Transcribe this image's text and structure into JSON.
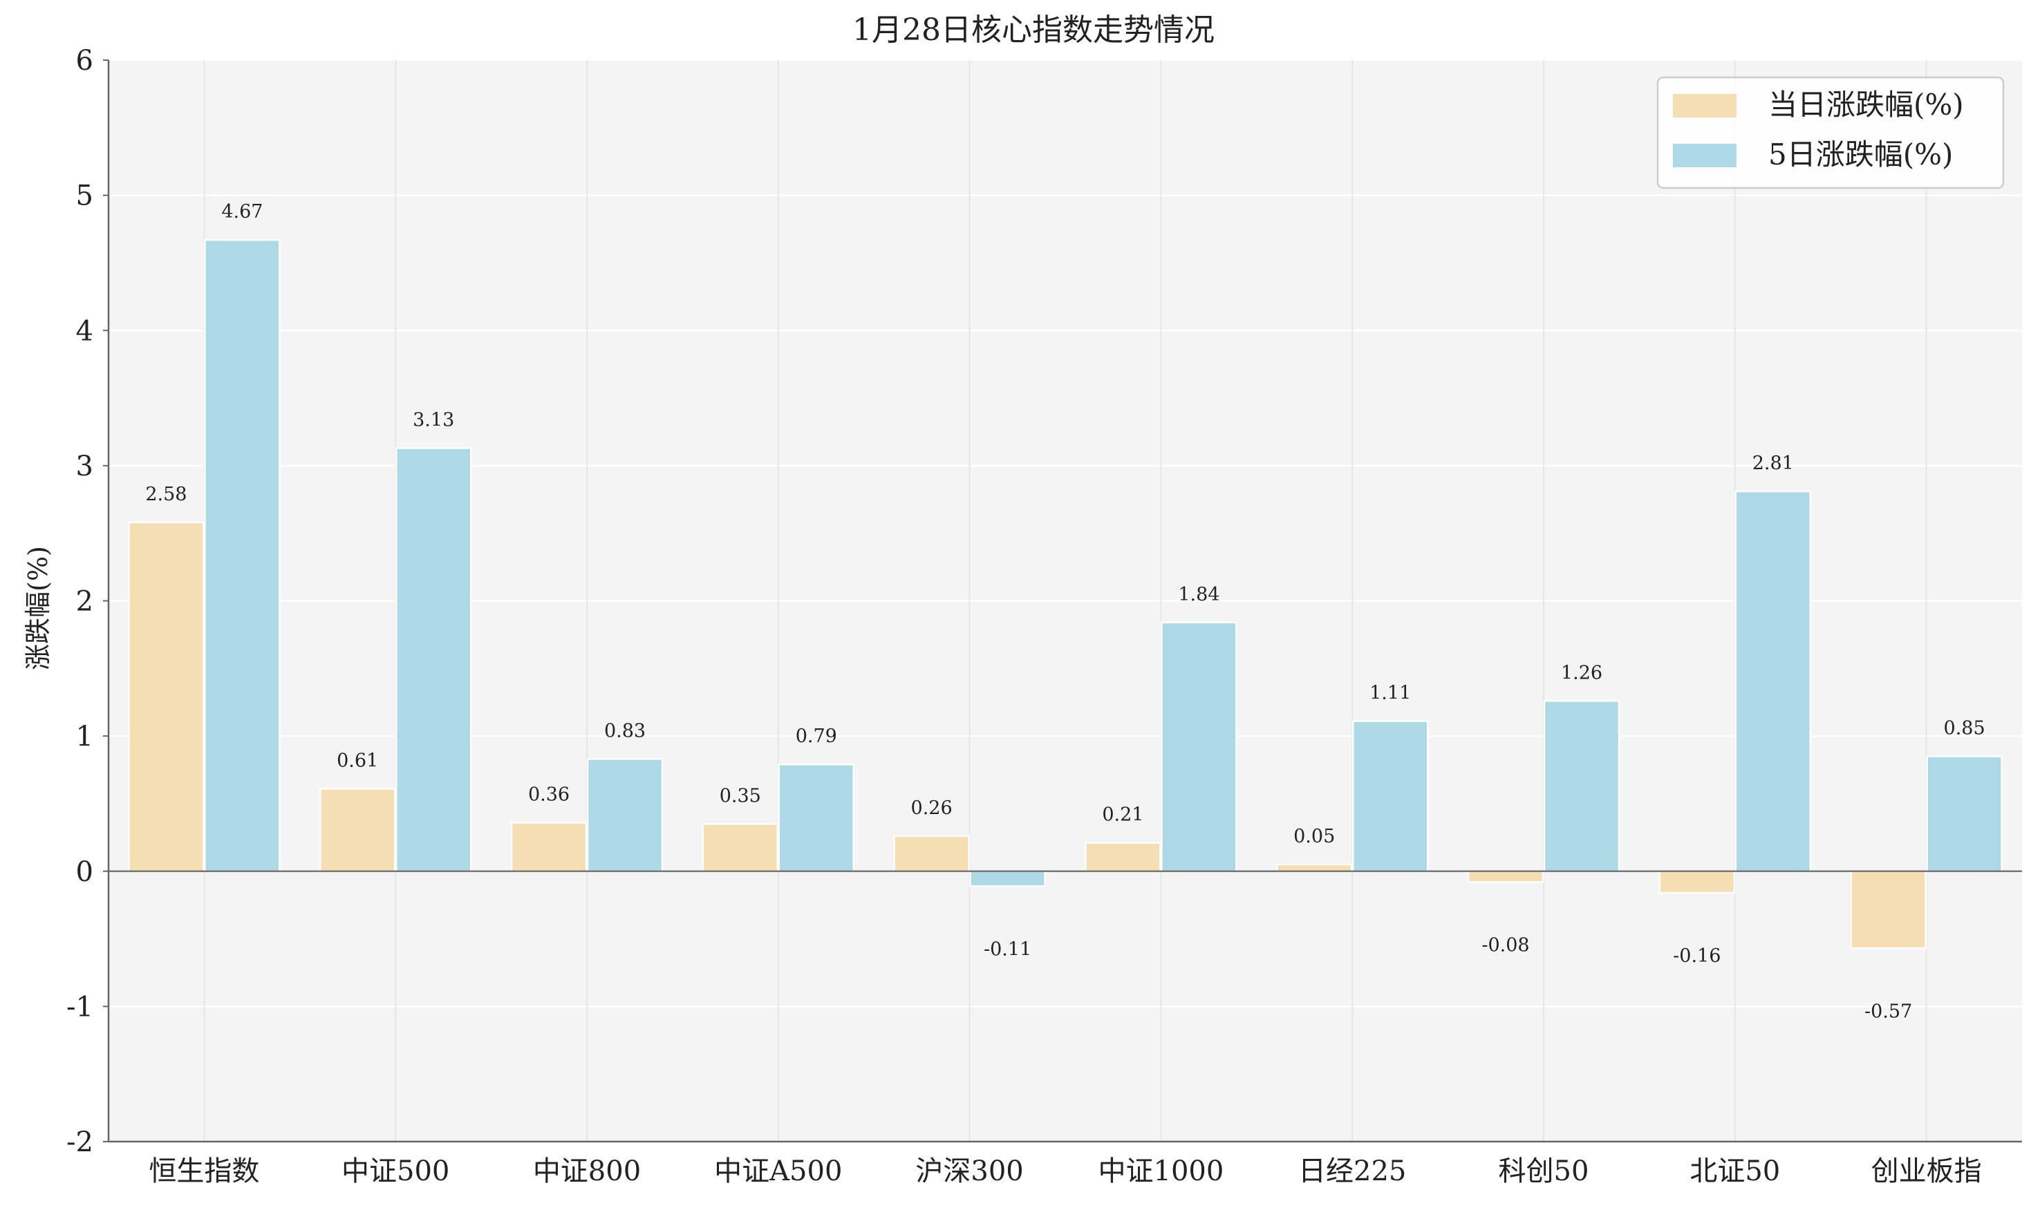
{
  "chart_data": {
    "type": "bar",
    "title": "1月28日核心指数走势情况",
    "xlabel": "",
    "ylabel": "涨跌幅(%)",
    "ylim": [
      -2,
      6
    ],
    "yticks": [
      -2,
      -1,
      0,
      1,
      2,
      3,
      4,
      5,
      6
    ],
    "grid": true,
    "legend_position": "top-right",
    "categories": [
      "恒生指数",
      "中证500",
      "中证800",
      "中证A500",
      "沪深300",
      "中证1000",
      "日经225",
      "科创50",
      "北证50",
      "创业板指"
    ],
    "series": [
      {
        "name": "当日涨跌幅(%)",
        "color": "#f5deb3",
        "values": [
          2.58,
          0.61,
          0.36,
          0.35,
          0.26,
          0.21,
          0.05,
          -0.08,
          -0.16,
          -0.57
        ],
        "labels": [
          "2.58",
          "0.61",
          "0.36",
          "0.35",
          "0.26",
          "0.21",
          "0.05",
          "",
          "",
          ""
        ]
      },
      {
        "name": "5日涨跌幅(%)",
        "color": "#add8e6",
        "values": [
          4.67,
          3.13,
          0.83,
          0.79,
          -0.11,
          1.84,
          1.11,
          1.26,
          2.81,
          0.85
        ],
        "labels": [
          "4.67",
          "3.13",
          "0.83",
          "0.79",
          "-0.11",
          "1.84",
          "1.11",
          "1.26",
          "2.81",
          "0.85"
        ]
      }
    ],
    "extra_labels": [
      {
        "text": "-0.08",
        "category_index": 7
      },
      {
        "text": "-0.16",
        "category_index": 8
      },
      {
        "text": "-0.57",
        "category_index": 9
      }
    ],
    "colors": {
      "plot_background": "#f4f4f4",
      "grid": "#ffffff",
      "axis": "#666666",
      "zero_line": "#777777",
      "text": "#222222"
    }
  }
}
